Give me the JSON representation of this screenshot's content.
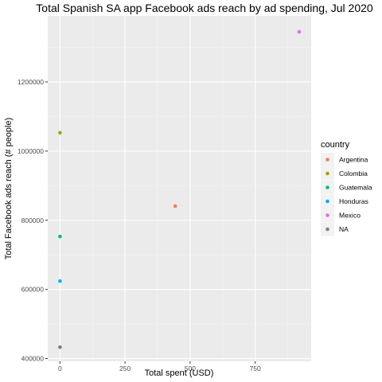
{
  "chart_data": {
    "type": "scatter",
    "title": "Total Spanish SA app Facebook ads reach by ad spending, Jul 2020",
    "xlabel": "Total spent (USD)",
    "ylabel": "Total Facebook ads reach (# people)",
    "xlim": [
      -47,
      965
    ],
    "ylim": [
      392000,
      1391000
    ],
    "x_ticks": [
      0,
      250,
      500,
      750
    ],
    "x_tick_labels": [
      "0",
      "250",
      "500",
      "750"
    ],
    "y_ticks": [
      400000,
      600000,
      800000,
      1000000,
      1200000
    ],
    "y_tick_labels": [
      "400000",
      "600000",
      "800000",
      "1000000",
      "1200000"
    ],
    "grid": true,
    "background": "#ebebeb",
    "legend": {
      "title": "country",
      "position": "right"
    },
    "series": [
      {
        "name": "Argentina",
        "color": "#F8766D",
        "points": [
          {
            "x": 443,
            "y": 841000
          }
        ]
      },
      {
        "name": "Colombia",
        "color": "#A3A500",
        "points": [
          {
            "x": 0,
            "y": 1053000
          }
        ]
      },
      {
        "name": "Guatemala",
        "color": "#00BF7D",
        "points": [
          {
            "x": 0,
            "y": 753000
          }
        ]
      },
      {
        "name": "Honduras",
        "color": "#00B0F6",
        "points": [
          {
            "x": 0,
            "y": 624000
          }
        ]
      },
      {
        "name": "Mexico",
        "color": "#E76BF3",
        "points": [
          {
            "x": 919,
            "y": 1345000
          }
        ]
      },
      {
        "name": "NA",
        "color": "#7F7F7F",
        "points": [
          {
            "x": 0,
            "y": 433000
          }
        ]
      }
    ]
  }
}
